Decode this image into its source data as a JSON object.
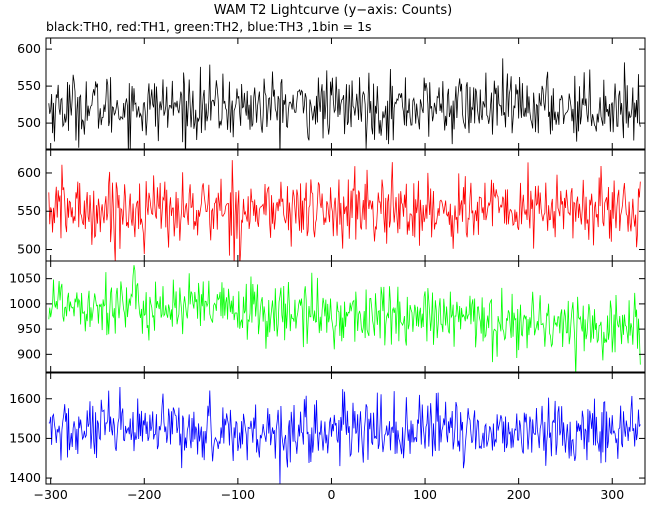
{
  "title": "WAM T2 Lightcurve (y−axis: Counts)",
  "subtitle": "black:TH0, red:TH1, green:TH2, blue:TH3 ,1bin = 1s",
  "colors": {
    "axis": "#000000",
    "background": "#ffffff"
  },
  "chart_data": {
    "type": "line",
    "shared_x": {
      "range": [
        -305,
        335
      ],
      "ticks": [
        -300,
        -200,
        -100,
        0,
        100,
        200,
        300
      ],
      "bin_seconds": 1
    },
    "panels": [
      {
        "series": "TH0",
        "color": "#000000",
        "ylim": [
          465,
          615
        ],
        "yticks": [
          500,
          550,
          600
        ],
        "mean": 522,
        "noise_sd": 22,
        "trend": []
      },
      {
        "series": "TH1",
        "color": "#ff0000",
        "ylim": [
          485,
          630
        ],
        "yticks": [
          500,
          550,
          600
        ],
        "mean": 552,
        "noise_sd": 23,
        "trend": []
      },
      {
        "series": "TH2",
        "color": "#00ff00",
        "ylim": [
          865,
          1085
        ],
        "yticks": [
          900,
          950,
          1000,
          1050
        ],
        "mean": 972,
        "noise_sd": 31,
        "trend": [
          [
            -300,
            1005
          ],
          [
            -150,
            992
          ],
          [
            0,
            978
          ],
          [
            150,
            968
          ],
          [
            250,
            960
          ],
          [
            330,
            952
          ]
        ]
      },
      {
        "series": "TH3",
        "color": "#0000ff",
        "ylim": [
          1385,
          1665
        ],
        "yticks": [
          1400,
          1500,
          1600
        ],
        "mean": 1518,
        "noise_sd": 40,
        "trend": []
      }
    ]
  }
}
